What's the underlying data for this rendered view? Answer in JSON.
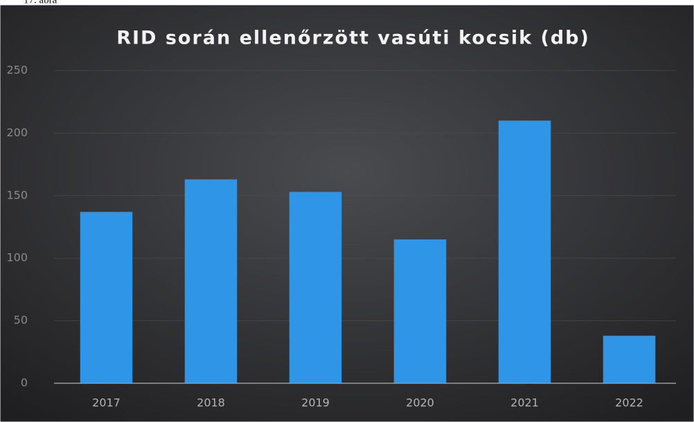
{
  "caption": "17. ábra",
  "chart_data": {
    "type": "bar",
    "title": "RID során ellenőrzött vasúti kocsik (db)",
    "categories": [
      "2017",
      "2018",
      "2019",
      "2020",
      "2021",
      "2022"
    ],
    "values": [
      137,
      163,
      153,
      115,
      210,
      38
    ],
    "color": "#2f95e6",
    "ylim": [
      0,
      250
    ],
    "yticks": [
      0,
      50,
      100,
      150,
      200,
      250
    ],
    "grid": true
  }
}
